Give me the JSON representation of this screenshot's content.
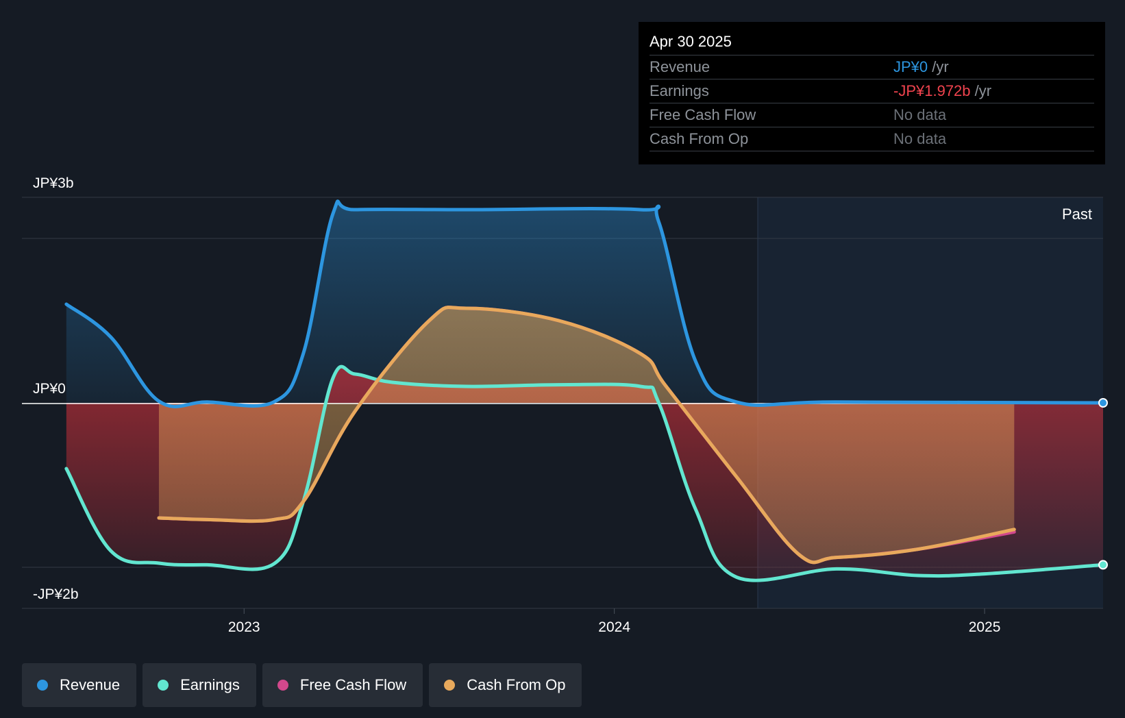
{
  "tooltip": {
    "date": "Apr 30 2025",
    "rows": [
      {
        "label": "Revenue",
        "value": "JP¥0",
        "unit": " /yr"
      },
      {
        "label": "Earnings",
        "value": "-JP¥1.972b",
        "unit": " /yr"
      },
      {
        "label": "Free Cash Flow",
        "value": "No data"
      },
      {
        "label": "Cash From Op",
        "value": "No data"
      }
    ]
  },
  "legend": {
    "items": [
      {
        "label": "Revenue",
        "color": "#2d96e0"
      },
      {
        "label": "Earnings",
        "color": "#62e6d0"
      },
      {
        "label": "Free Cash Flow",
        "color": "#d2488c"
      },
      {
        "label": "Cash From Op",
        "color": "#e8a95c"
      }
    ]
  },
  "chart_data": {
    "type": "area",
    "title": "",
    "y_unit": "JP¥b",
    "ylim": [
      -2.5,
      2.5
    ],
    "y_tick_labels": [
      {
        "label": "JP¥3b",
        "value": 2.5
      },
      {
        "label": "JP¥0",
        "value": 0
      },
      {
        "label": "-JP¥2b",
        "value": -2.5
      }
    ],
    "xlim": [
      2022.4,
      2025.32
    ],
    "x_ticks": [
      {
        "label": "2023",
        "value": 2023.0
      },
      {
        "label": "2024",
        "value": 2024.0
      },
      {
        "label": "2025",
        "value": 2025.0
      }
    ],
    "past_label": "Past",
    "past_start": 2024.33,
    "series": [
      {
        "name": "Revenue",
        "color": "#2d96e0",
        "points": [
          [
            2022.52,
            1.2
          ],
          [
            2022.64,
            0.8
          ],
          [
            2022.77,
            0.02
          ],
          [
            2022.9,
            0.01
          ],
          [
            2023.08,
            0.01
          ],
          [
            2023.16,
            0.6
          ],
          [
            2023.24,
            2.3
          ],
          [
            2023.3,
            2.35
          ],
          [
            2023.6,
            2.35
          ],
          [
            2024.07,
            2.35
          ],
          [
            2024.12,
            2.2
          ],
          [
            2024.22,
            0.5
          ],
          [
            2024.33,
            0.01
          ],
          [
            2024.6,
            0.01
          ],
          [
            2025.32,
            0.0
          ]
        ]
      },
      {
        "name": "Earnings",
        "color": "#62e6d0",
        "points": [
          [
            2022.52,
            -0.8
          ],
          [
            2022.64,
            -1.8
          ],
          [
            2022.77,
            -1.95
          ],
          [
            2022.9,
            -1.97
          ],
          [
            2023.08,
            -1.96
          ],
          [
            2023.16,
            -1.2
          ],
          [
            2023.24,
            0.3
          ],
          [
            2023.3,
            0.35
          ],
          [
            2023.4,
            0.25
          ],
          [
            2023.6,
            0.2
          ],
          [
            2023.85,
            0.22
          ],
          [
            2024.07,
            0.2
          ],
          [
            2024.12,
            0.0
          ],
          [
            2024.22,
            -1.3
          ],
          [
            2024.33,
            -2.12
          ],
          [
            2024.6,
            -2.02
          ],
          [
            2024.82,
            -2.1
          ],
          [
            2025.0,
            -2.08
          ],
          [
            2025.32,
            -1.97
          ]
        ]
      },
      {
        "name": "Free Cash Flow",
        "color": "#d2488c",
        "points": [
          [
            2022.77,
            -1.4
          ],
          [
            2022.9,
            -1.42
          ],
          [
            2023.08,
            -1.42
          ],
          [
            2023.16,
            -1.2
          ],
          [
            2023.3,
            -0.1
          ],
          [
            2023.5,
            1.0
          ],
          [
            2023.6,
            1.15
          ],
          [
            2023.85,
            1.0
          ],
          [
            2024.07,
            0.6
          ],
          [
            2024.14,
            0.2
          ],
          [
            2024.33,
            -0.9
          ],
          [
            2024.5,
            -1.85
          ],
          [
            2024.6,
            -1.88
          ],
          [
            2024.82,
            -1.78
          ],
          [
            2025.08,
            -1.57
          ]
        ]
      },
      {
        "name": "Cash From Op",
        "color": "#e8a95c",
        "points": [
          [
            2022.77,
            -1.4
          ],
          [
            2022.9,
            -1.42
          ],
          [
            2023.08,
            -1.42
          ],
          [
            2023.16,
            -1.2
          ],
          [
            2023.3,
            -0.1
          ],
          [
            2023.5,
            1.0
          ],
          [
            2023.6,
            1.15
          ],
          [
            2023.85,
            1.0
          ],
          [
            2024.07,
            0.6
          ],
          [
            2024.14,
            0.2
          ],
          [
            2024.33,
            -0.9
          ],
          [
            2024.5,
            -1.85
          ],
          [
            2024.6,
            -1.88
          ],
          [
            2024.82,
            -1.78
          ],
          [
            2025.08,
            -1.54
          ]
        ]
      }
    ]
  }
}
